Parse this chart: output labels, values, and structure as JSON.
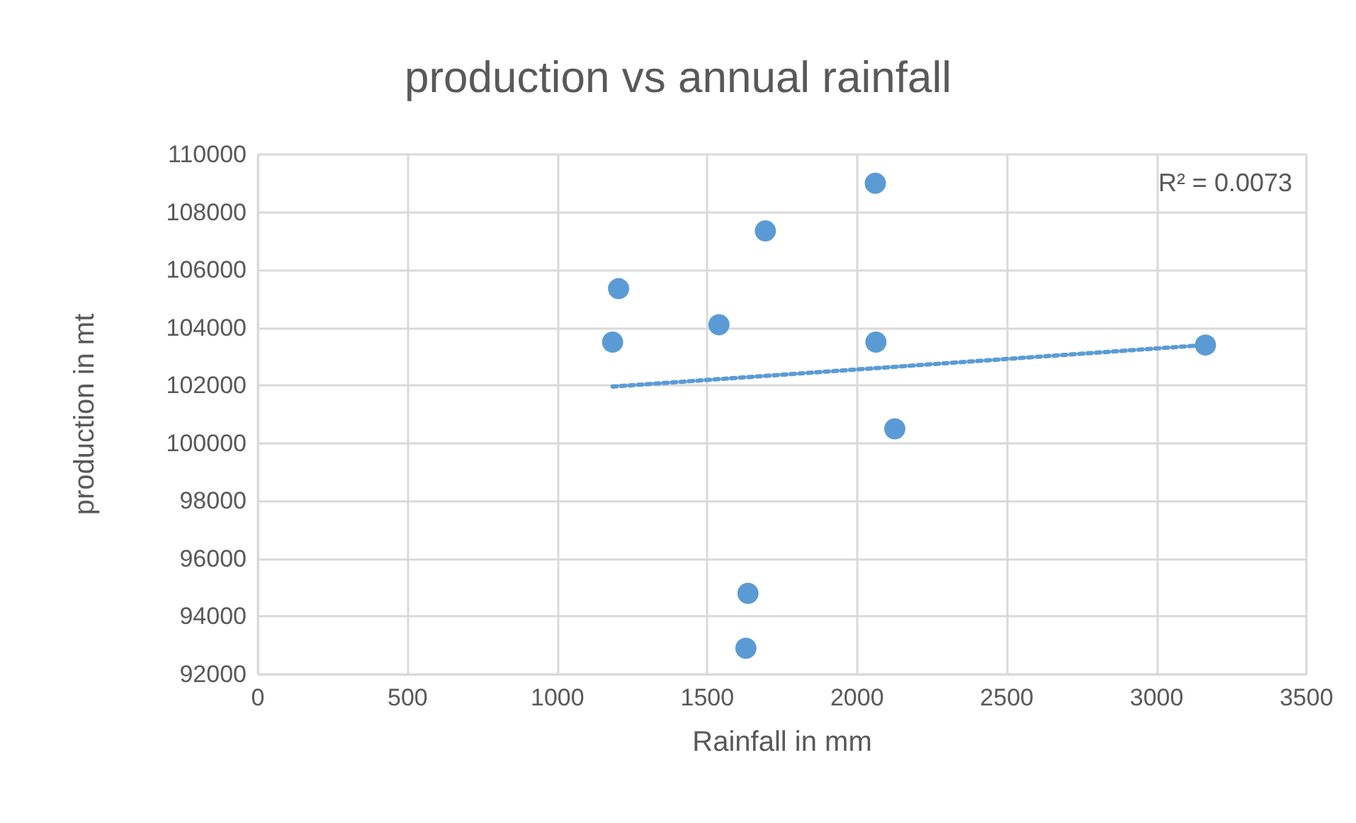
{
  "chart_data": {
    "type": "scatter",
    "title": "production vs annual rainfall",
    "xlabel": "Rainfall in mm",
    "ylabel": "production in mt",
    "series": [
      {
        "color": "#5b9bd5",
        "marker": "circle",
        "x": [
          2061,
          1694,
          1204,
          1184,
          1539,
          2063,
          2126,
          3163,
          1636,
          1629
        ],
        "values": [
          109000,
          107350,
          105350,
          103500,
          104100,
          103500,
          100500,
          103400,
          94800,
          92900
        ]
      },
      {
        "type": "line",
        "color": "#5b9bd5",
        "marker": "none",
        "line_style": "dotted",
        "x": [
          1184,
          3163
        ],
        "values": [
          101960,
          103400
        ]
      }
    ],
    "annotations": [
      "R² = 0.0073"
    ],
    "xlim": [
      0,
      3500
    ],
    "xticks": [
      0,
      500,
      1000,
      1500,
      2000,
      2500,
      3000,
      3500
    ],
    "ylim": [
      92000,
      110000
    ],
    "yticks": [
      92000,
      94000,
      96000,
      98000,
      100000,
      102000,
      104000,
      106000,
      108000,
      110000
    ],
    "grid": true
  }
}
